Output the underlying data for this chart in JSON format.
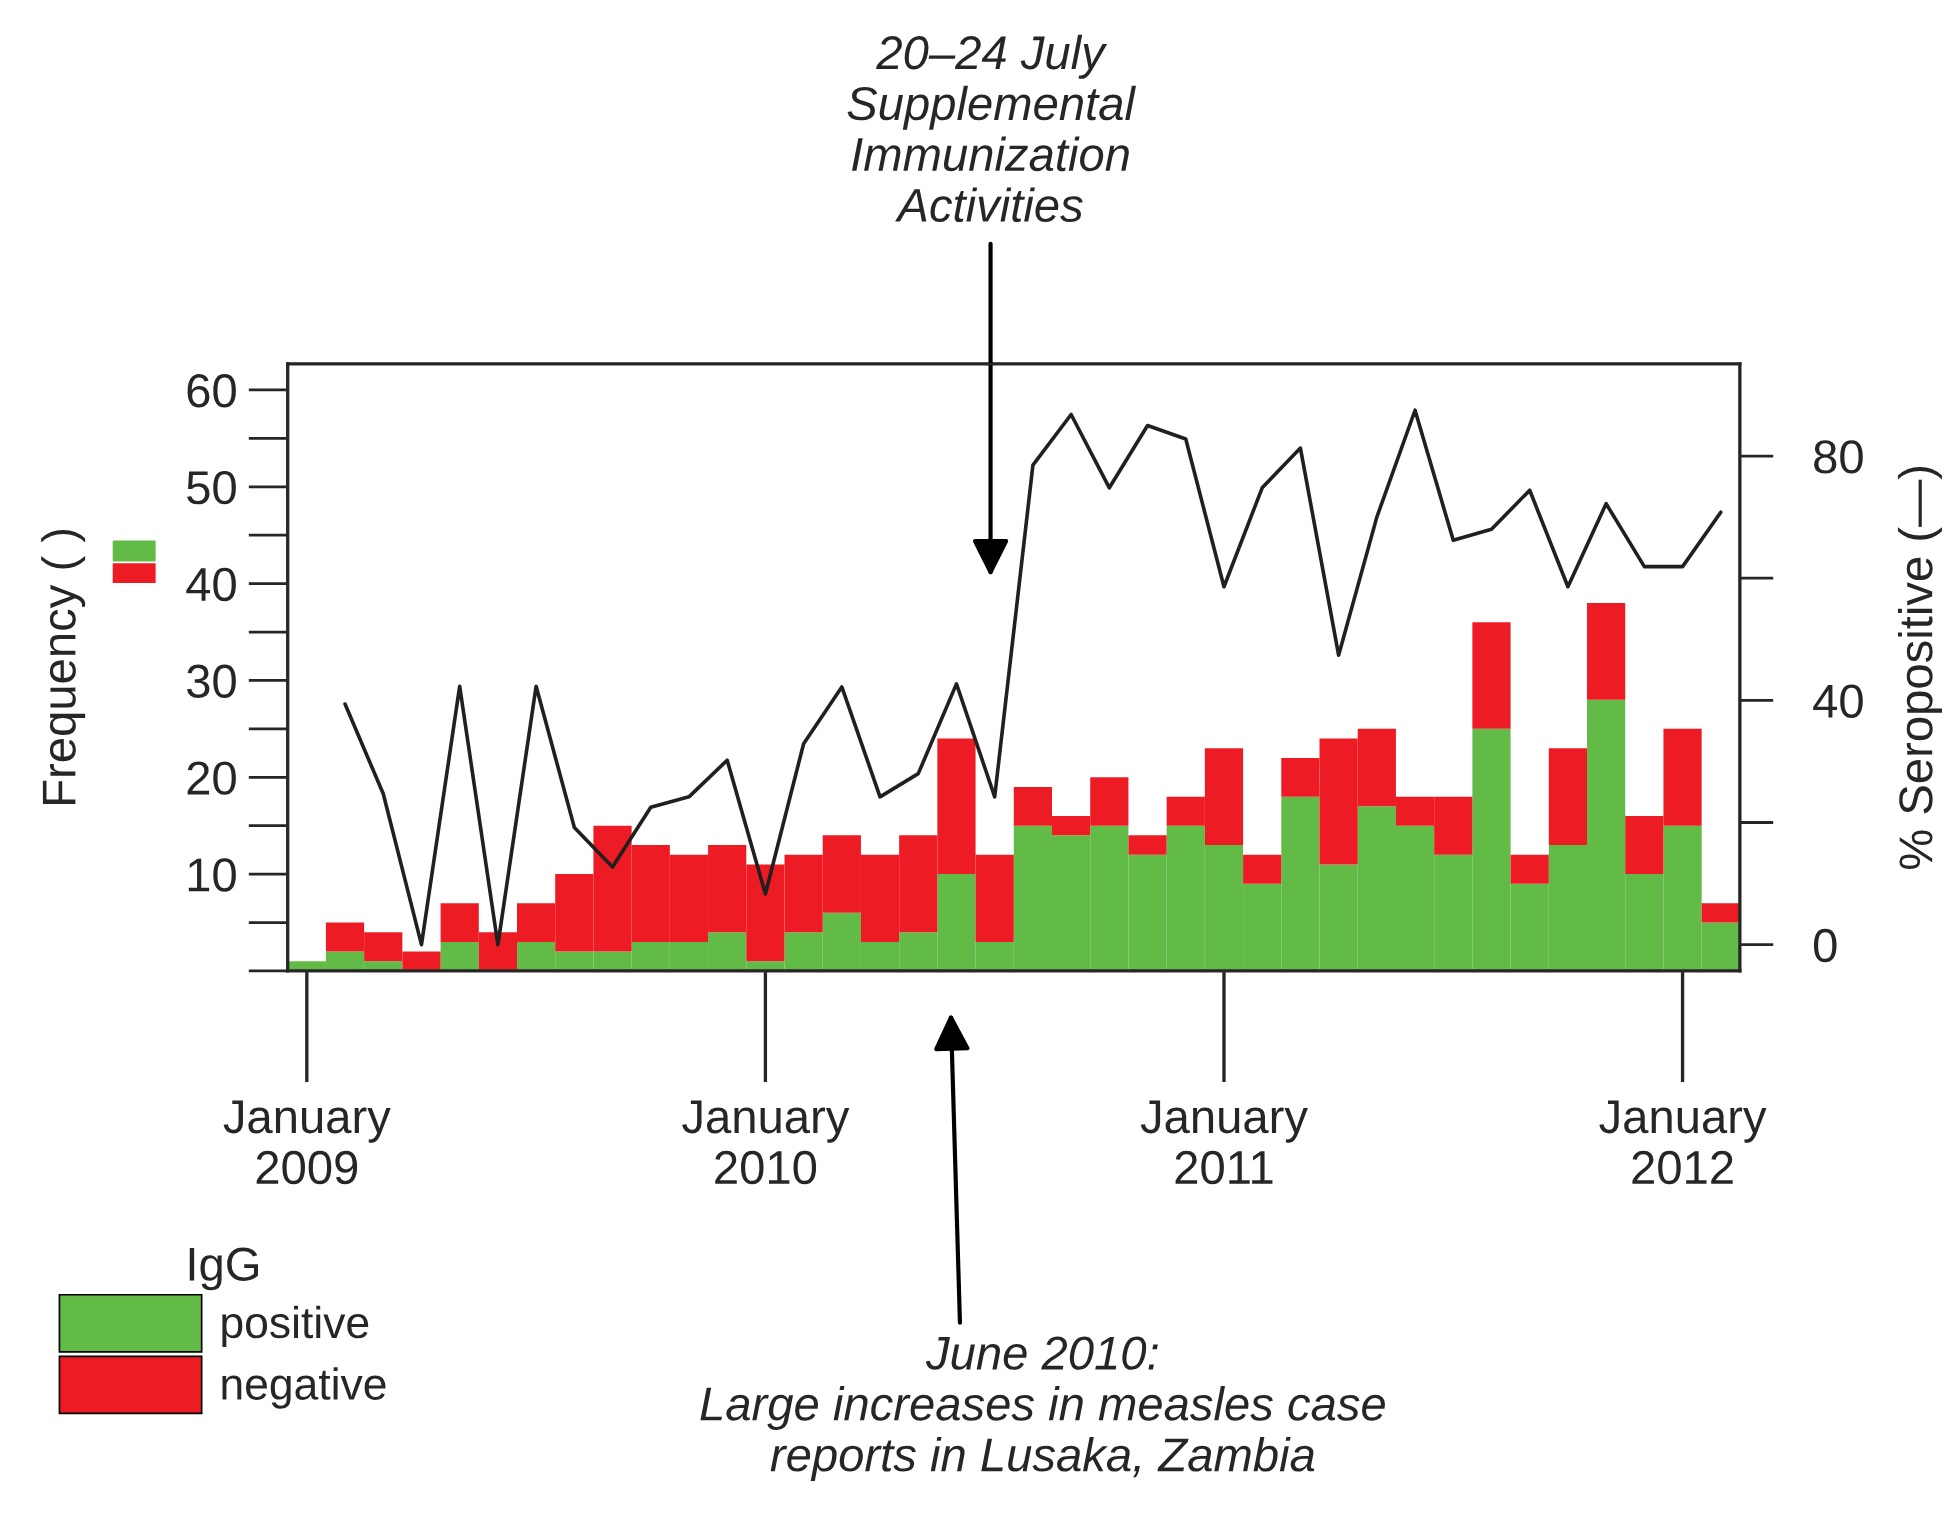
{
  "chart_data": {
    "type": "bar",
    "stacked": true,
    "ylabel": "Frequency ( )",
    "y2label": "% Seropositive (—)",
    "legend_title": "IgG",
    "legend": "bottom left",
    "categories": [
      "January\n2009",
      null,
      null,
      null,
      null,
      null,
      null,
      null,
      null,
      null,
      null,
      null,
      "January\n2010",
      null,
      null,
      null,
      null,
      null,
      null,
      null,
      null,
      null,
      null,
      null,
      "January\n2011",
      null,
      null,
      null,
      null,
      null,
      null,
      null,
      null,
      null,
      null,
      null,
      "January\n2012",
      null
    ],
    "series": [
      {
        "name": "positive",
        "color": "#62bb46",
        "values": [
          1,
          2,
          1,
          0,
          3,
          0,
          3,
          2,
          2,
          3,
          3,
          4,
          1,
          4,
          6,
          3,
          4,
          10,
          3,
          15,
          14,
          15,
          12,
          15,
          13,
          9,
          18,
          11,
          17,
          15,
          12,
          25,
          9,
          13,
          28,
          10,
          15,
          5
        ]
      },
      {
        "name": "negative",
        "color": "#ed1c24",
        "values": [
          0,
          3,
          3,
          2,
          4,
          4,
          4,
          8,
          13,
          10,
          9,
          9,
          10,
          8,
          8,
          9,
          10,
          14,
          9,
          4,
          2,
          5,
          2,
          3,
          10,
          3,
          4,
          13,
          8,
          3,
          6,
          11,
          3,
          10,
          10,
          6,
          10,
          2
        ]
      },
      {
        "type": "line",
        "axis": "y2",
        "color": "#231f20",
        "values": [
          null,
          39.4,
          24.7,
          0,
          42.3,
          0,
          42.3,
          19.2,
          12.7,
          22.5,
          24.2,
          30.2,
          8.3,
          32.9,
          42.2,
          24.2,
          28,
          42.7,
          24.2,
          78.5,
          86.8,
          74.8,
          85,
          82.8,
          58.6,
          74.8,
          81.3,
          47.4,
          70,
          87.5,
          66.2,
          68,
          74.4,
          58.6,
          72.2,
          61.9,
          61.9,
          70.8
        ]
      }
    ],
    "ylim": [
      0,
      62.7
    ],
    "yticks": [
      10,
      20,
      30,
      40,
      50,
      60
    ],
    "y2lim": [
      -4.3,
      95.1
    ],
    "y2ticks": [
      0,
      40,
      80
    ],
    "annotations": [
      "20–24 July\nSupplemental\nImmunization\nActivities",
      "June 2010:\nLarge increases in measles case\nreports in Lusaka, Zambia"
    ]
  }
}
